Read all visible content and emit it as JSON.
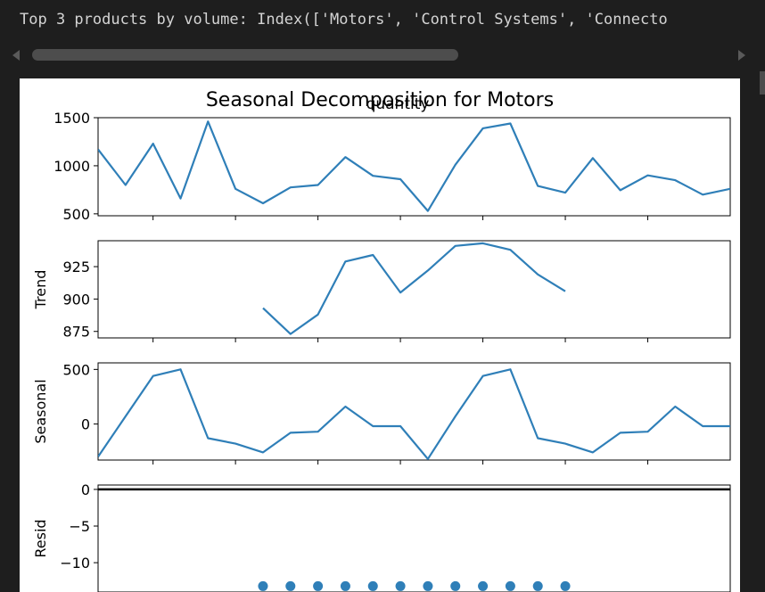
{
  "console": {
    "output_text": "Top 3 products by volume: Index(['Motors', 'Control Systems', 'Connecto"
  },
  "colors": {
    "line": "#2f7fb8",
    "background": "#1e1e1e",
    "text": "#d4d4d4"
  },
  "chart_data": [
    {
      "type": "line",
      "title": "Seasonal Decomposition for Motors",
      "overlay_label": "quantity",
      "ylabel": "",
      "ylim": [
        480,
        1500
      ],
      "y_ticks": [
        "500",
        "1000",
        "1500"
      ],
      "y_tick_values": [
        500,
        1000,
        1500
      ],
      "x": [
        0,
        1,
        2,
        3,
        4,
        5,
        6,
        7,
        8,
        9,
        10,
        11,
        12,
        13,
        14,
        15,
        16,
        17,
        18,
        19,
        20,
        21,
        22,
        23
      ],
      "values": [
        1170,
        800,
        1230,
        660,
        1460,
        760,
        610,
        775,
        800,
        1090,
        895,
        860,
        530,
        1010,
        1390,
        1440,
        790,
        720,
        1080,
        745,
        900,
        850,
        700,
        760
      ]
    },
    {
      "type": "line",
      "ylabel": "Trend",
      "ylim": [
        870,
        945
      ],
      "y_ticks": [
        "875",
        "900",
        "925"
      ],
      "y_tick_values": [
        875,
        900,
        925
      ],
      "x": [
        6,
        7,
        8,
        9,
        10,
        11,
        12,
        13,
        14,
        15,
        16,
        17
      ],
      "values": [
        893,
        873,
        888,
        929,
        934,
        905,
        922,
        941,
        943,
        938,
        919,
        906
      ]
    },
    {
      "type": "line",
      "ylabel": "Seasonal",
      "ylim": [
        -330,
        560
      ],
      "y_ticks": [
        "500",
        "0"
      ],
      "y_tick_values": [
        500,
        0
      ],
      "x": [
        0,
        1,
        2,
        3,
        4,
        5,
        6,
        7,
        8,
        9,
        10,
        11,
        12,
        13,
        14,
        15,
        16,
        17,
        18,
        19,
        20,
        21,
        22,
        23
      ],
      "values": [
        -300,
        70,
        440,
        500,
        -130,
        -180,
        -260,
        -80,
        -70,
        160,
        -20,
        -20,
        -320,
        70,
        440,
        500,
        -130,
        -180,
        -260,
        -80,
        -70,
        160,
        -20,
        -20
      ]
    },
    {
      "type": "scatter",
      "ylabel": "Resid",
      "ylim": [
        -14,
        0.6
      ],
      "y_ticks": [
        "0",
        "−5",
        "−10"
      ],
      "y_tick_values": [
        0,
        -5,
        -10
      ],
      "x": [
        6,
        7,
        8,
        9,
        10,
        11,
        12,
        13,
        14,
        15,
        16,
        17
      ],
      "values": [
        -13.2,
        -13.2,
        -13.2,
        -13.2,
        -13.2,
        -13.2,
        -13.2,
        -13.2,
        -13.2,
        -13.2,
        -13.2,
        -13.2
      ],
      "reference_line": 0
    }
  ]
}
